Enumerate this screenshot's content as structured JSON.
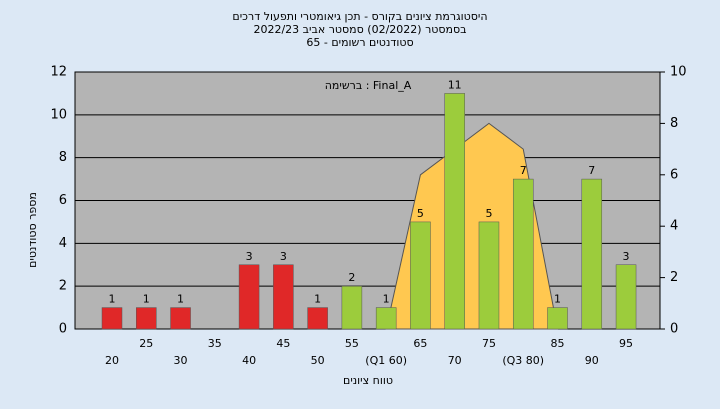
{
  "chart_data": {
    "type": "bar",
    "title": "היסטוגרמת ציונים בקורס - תכן גיאומטרי ותפעול דרכים",
    "subtitle": "בסמסטר  (02/2022)  סמסטר אביב 2022/23",
    "subtitle2": "סטודנטים רשומים - 65",
    "annotation": "ברשימה : Final_A",
    "y_label": "מספר סטודנטים",
    "x_label": "טווח ציונים",
    "categories": [
      "20",
      "25",
      "30",
      "35",
      "40",
      "45",
      "50",
      "55",
      "(Q1 60)",
      "65",
      "70",
      "75",
      "(Q3 80)",
      "85",
      "90",
      "95"
    ],
    "series": [
      {
        "name": "count",
        "values": [
          1,
          1,
          1,
          0,
          3,
          3,
          1,
          2,
          1,
          5,
          11,
          5,
          7,
          1,
          7,
          3
        ],
        "colors": [
          "#e02828",
          "#e02828",
          "#e02828",
          "#e02828",
          "#e02828",
          "#e02828",
          "#e02828",
          "#9ccc3c",
          "#9ccc3c",
          "#9ccc3c",
          "#9ccc3c",
          "#9ccc3c",
          "#9ccc3c",
          "#9ccc3c",
          "#9ccc3c",
          "#9ccc3c"
        ]
      },
      {
        "name": "distribution",
        "type": "area",
        "axis": "y2",
        "color": "#ffc850",
        "values": [
          null,
          null,
          null,
          null,
          null,
          null,
          null,
          null,
          0,
          6,
          7,
          8,
          7,
          0,
          null,
          null
        ]
      }
    ],
    "ylim": [
      0,
      12
    ],
    "yticks": [
      0,
      2,
      4,
      6,
      8,
      10,
      12
    ],
    "y2lim": [
      0,
      10
    ],
    "y2ticks": [
      0,
      2,
      4,
      6,
      8,
      10
    ],
    "grid": true
  }
}
